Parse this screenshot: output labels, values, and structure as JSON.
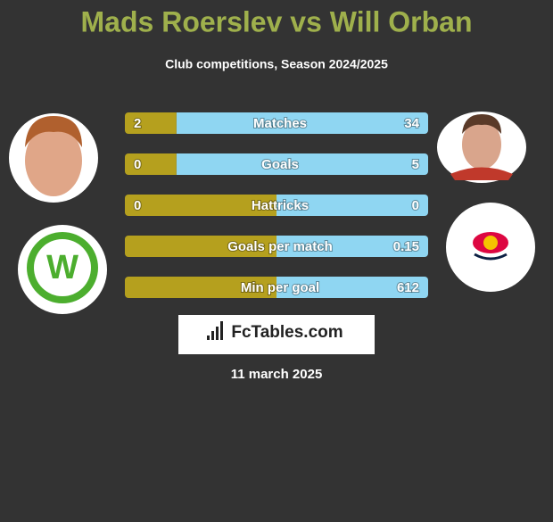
{
  "header": {
    "title": "Mads Roerslev vs Will Orban",
    "subtitle": "Club competitions, Season 2024/2025"
  },
  "rows": [
    {
      "label": "Matches",
      "left": 2,
      "right": 34
    },
    {
      "label": "Goals",
      "left": 0,
      "right": 5
    },
    {
      "label": "Hattricks",
      "left": 0,
      "right": 0
    },
    {
      "label": "Goals per match",
      "left": null,
      "right": 0.15
    },
    {
      "label": "Min per goal",
      "left": null,
      "right": 612
    }
  ],
  "logo": "FcTables.com",
  "date": "11 march 2025"
}
